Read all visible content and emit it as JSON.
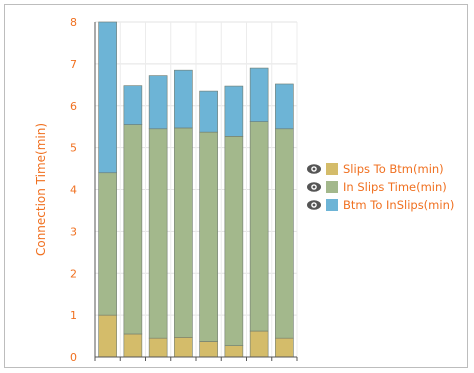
{
  "chart_data": {
    "type": "bar",
    "stacked": true,
    "title": "",
    "xlabel": "",
    "ylabel": "Connection Time(min)",
    "ylim": [
      0,
      8
    ],
    "yticks": [
      "0",
      "1",
      "2",
      "3",
      "4",
      "5",
      "6",
      "7",
      "8"
    ],
    "grid": true,
    "legend_position": "right",
    "categories": [
      "",
      "",
      "",
      "",
      "",
      "",
      "",
      ""
    ],
    "series": [
      {
        "name": "Slips To Btm(min)",
        "color": "#d4bc6a",
        "values": [
          1.0,
          0.55,
          0.45,
          0.47,
          0.37,
          0.27,
          0.62,
          0.45
        ]
      },
      {
        "name": "In Slips Time(min)",
        "color": "#a3b88c",
        "values": [
          3.4,
          5.0,
          5.0,
          5.0,
          5.0,
          5.0,
          5.0,
          5.0
        ]
      },
      {
        "name": "Btm To InSlips(min)",
        "color": "#6db4d6",
        "values": [
          3.6,
          0.93,
          1.27,
          1.38,
          0.98,
          1.2,
          1.28,
          1.07
        ]
      }
    ]
  }
}
